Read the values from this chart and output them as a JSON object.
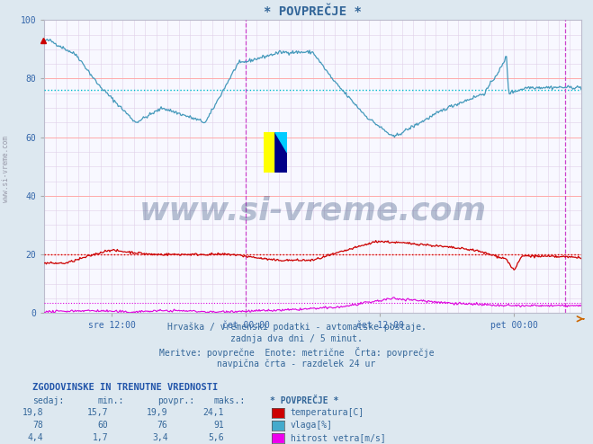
{
  "title": "* POVPREČJE *",
  "bg_color": "#dde8f0",
  "plot_bg_color": "#f8f8ff",
  "grid_color_major_h": "#ffaaaa",
  "grid_color_minor": "#e8d8e8",
  "xlabel_ticks": [
    "sre 12:00",
    "čet 00:00",
    "čet 12:00",
    "pet 00:00"
  ],
  "xlabel_tick_positions": [
    0.125,
    0.375,
    0.625,
    0.875
  ],
  "ylim": [
    0,
    100
  ],
  "yticks": [
    0,
    20,
    40,
    60,
    80,
    100
  ],
  "temp_color": "#cc0000",
  "humidity_color": "#4499bb",
  "wind_color": "#dd00dd",
  "humidity_avg_color": "#00bbcc",
  "temp_avg_color": "#cc0000",
  "wind_avg_color": "#dd00dd",
  "vline_color": "#cc44cc",
  "vline_positions": [
    0.375,
    0.97
  ],
  "watermark_text": "www.si-vreme.com",
  "watermark_color": "#1a3a6a",
  "watermark_alpha": 0.3,
  "left_text": "www.si-vreme.com",
  "subtitle_lines": [
    "Hrvaška / vremenski podatki - avtomatske postaje.",
    "zadnja dva dni / 5 minut.",
    "Meritve: povprečne  Enote: metrične  Črta: povprečje",
    "navpična črta - razdelek 24 ur"
  ],
  "table_header": "ZGODOVINSKE IN TRENUTNE VREDNOSTI",
  "table_cols": [
    "sedaj:",
    "min.:",
    "povpr.:",
    "maks.:",
    "* POVPREČJE *"
  ],
  "table_rows": [
    [
      "19,8",
      "15,7",
      "19,9",
      "24,1",
      "temperatura[C]"
    ],
    [
      "78",
      "60",
      "76",
      "91",
      "vlaga[%]"
    ],
    [
      "4,4",
      "1,7",
      "3,4",
      "5,6",
      "hitrost vetra[m/s]"
    ]
  ],
  "legend_colors": [
    "#cc0000",
    "#44aacc",
    "#ee00ee"
  ],
  "n_points": 576,
  "humidity_avg": 76,
  "temp_avg": 19.9,
  "wind_avg": 3.4
}
